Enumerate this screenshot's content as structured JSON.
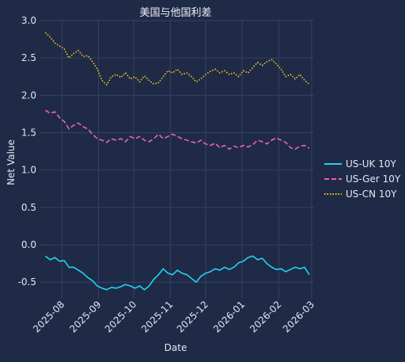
{
  "chart_data": {
    "type": "line",
    "title": "美国与他国利差",
    "xlabel": "Date",
    "ylabel": "Net Value",
    "x_range": [
      "2025-07-13",
      "2026-03-03"
    ],
    "ylim": [
      -0.72,
      3.0
    ],
    "y_ticks": [
      -0.5,
      0.0,
      0.5,
      1.0,
      1.5,
      2.0,
      2.5,
      3.0
    ],
    "y_tick_labels": [
      "-0.5",
      "0.0",
      "0.5",
      "1.0",
      "1.5",
      "2.0",
      "2.5",
      "3.0"
    ],
    "x_ticks": [
      "2025-08-01",
      "2025-09-01",
      "2025-10-01",
      "2025-11-01",
      "2025-12-01",
      "2026-01-01",
      "2026-02-01",
      "2026-03-01"
    ],
    "x_tick_labels": [
      "2025-08",
      "2025-09",
      "2025-10",
      "2025-11",
      "2025-12",
      "2026-01",
      "2026-02",
      "2026-03"
    ],
    "grid": true,
    "legend_position": "right",
    "series": [
      {
        "name": "US-UK 10Y",
        "color": "#22d3ee",
        "style": "solid",
        "points": [
          [
            "2025-07-18",
            -0.15
          ],
          [
            "2025-07-22",
            -0.2
          ],
          [
            "2025-07-26",
            -0.17
          ],
          [
            "2025-07-30",
            -0.22
          ],
          [
            "2025-08-03",
            -0.21
          ],
          [
            "2025-08-07",
            -0.3
          ],
          [
            "2025-08-11",
            -0.3
          ],
          [
            "2025-08-15",
            -0.34
          ],
          [
            "2025-08-19",
            -0.38
          ],
          [
            "2025-08-23",
            -0.44
          ],
          [
            "2025-08-27",
            -0.48
          ],
          [
            "2025-08-31",
            -0.55
          ],
          [
            "2025-09-04",
            -0.58
          ],
          [
            "2025-09-08",
            -0.6
          ],
          [
            "2025-09-12",
            -0.57
          ],
          [
            "2025-09-16",
            -0.58
          ],
          [
            "2025-09-20",
            -0.56
          ],
          [
            "2025-09-24",
            -0.53
          ],
          [
            "2025-09-28",
            -0.55
          ],
          [
            "2025-10-02",
            -0.58
          ],
          [
            "2025-10-06",
            -0.55
          ],
          [
            "2025-10-10",
            -0.6
          ],
          [
            "2025-10-14",
            -0.55
          ],
          [
            "2025-10-18",
            -0.46
          ],
          [
            "2025-10-22",
            -0.4
          ],
          [
            "2025-10-26",
            -0.32
          ],
          [
            "2025-10-30",
            -0.38
          ],
          [
            "2025-11-03",
            -0.4
          ],
          [
            "2025-11-07",
            -0.34
          ],
          [
            "2025-11-11",
            -0.38
          ],
          [
            "2025-11-15",
            -0.4
          ],
          [
            "2025-11-19",
            -0.45
          ],
          [
            "2025-11-23",
            -0.5
          ],
          [
            "2025-11-27",
            -0.42
          ],
          [
            "2025-12-01",
            -0.38
          ],
          [
            "2025-12-05",
            -0.36
          ],
          [
            "2025-12-09",
            -0.32
          ],
          [
            "2025-12-13",
            -0.34
          ],
          [
            "2025-12-17",
            -0.3
          ],
          [
            "2025-12-21",
            -0.33
          ],
          [
            "2025-12-25",
            -0.3
          ],
          [
            "2025-12-29",
            -0.24
          ],
          [
            "2026-01-02",
            -0.22
          ],
          [
            "2026-01-06",
            -0.17
          ],
          [
            "2026-01-10",
            -0.15
          ],
          [
            "2026-01-14",
            -0.2
          ],
          [
            "2026-01-18",
            -0.18
          ],
          [
            "2026-01-22",
            -0.25
          ],
          [
            "2026-01-26",
            -0.3
          ],
          [
            "2026-01-30",
            -0.33
          ],
          [
            "2026-02-03",
            -0.32
          ],
          [
            "2026-02-07",
            -0.36
          ],
          [
            "2026-02-11",
            -0.33
          ],
          [
            "2026-02-15",
            -0.3
          ],
          [
            "2026-02-19",
            -0.32
          ],
          [
            "2026-02-23",
            -0.3
          ],
          [
            "2026-02-27",
            -0.4
          ]
        ]
      },
      {
        "name": "US-Ger 10Y",
        "color": "#ec5fc0",
        "style": "dashed",
        "points": [
          [
            "2025-07-18",
            1.8
          ],
          [
            "2025-07-22",
            1.76
          ],
          [
            "2025-07-26",
            1.78
          ],
          [
            "2025-07-30",
            1.7
          ],
          [
            "2025-08-03",
            1.65
          ],
          [
            "2025-08-07",
            1.55
          ],
          [
            "2025-08-11",
            1.6
          ],
          [
            "2025-08-15",
            1.63
          ],
          [
            "2025-08-19",
            1.58
          ],
          [
            "2025-08-23",
            1.55
          ],
          [
            "2025-08-27",
            1.48
          ],
          [
            "2025-08-31",
            1.42
          ],
          [
            "2025-09-04",
            1.4
          ],
          [
            "2025-09-08",
            1.37
          ],
          [
            "2025-09-12",
            1.42
          ],
          [
            "2025-09-16",
            1.4
          ],
          [
            "2025-09-20",
            1.42
          ],
          [
            "2025-09-24",
            1.38
          ],
          [
            "2025-09-28",
            1.45
          ],
          [
            "2025-10-02",
            1.42
          ],
          [
            "2025-10-06",
            1.45
          ],
          [
            "2025-10-10",
            1.4
          ],
          [
            "2025-10-14",
            1.38
          ],
          [
            "2025-10-18",
            1.42
          ],
          [
            "2025-10-22",
            1.48
          ],
          [
            "2025-10-26",
            1.42
          ],
          [
            "2025-10-30",
            1.45
          ],
          [
            "2025-11-03",
            1.48
          ],
          [
            "2025-11-07",
            1.45
          ],
          [
            "2025-11-11",
            1.42
          ],
          [
            "2025-11-15",
            1.4
          ],
          [
            "2025-11-19",
            1.38
          ],
          [
            "2025-11-23",
            1.36
          ],
          [
            "2025-11-27",
            1.4
          ],
          [
            "2025-12-01",
            1.35
          ],
          [
            "2025-12-05",
            1.33
          ],
          [
            "2025-12-09",
            1.36
          ],
          [
            "2025-12-13",
            1.3
          ],
          [
            "2025-12-17",
            1.33
          ],
          [
            "2025-12-21",
            1.28
          ],
          [
            "2025-12-25",
            1.32
          ],
          [
            "2025-12-29",
            1.3
          ],
          [
            "2026-01-02",
            1.33
          ],
          [
            "2026-01-06",
            1.31
          ],
          [
            "2026-01-10",
            1.34
          ],
          [
            "2026-01-14",
            1.4
          ],
          [
            "2026-01-18",
            1.38
          ],
          [
            "2026-01-22",
            1.35
          ],
          [
            "2026-01-26",
            1.4
          ],
          [
            "2026-01-30",
            1.43
          ],
          [
            "2026-02-03",
            1.4
          ],
          [
            "2026-02-07",
            1.37
          ],
          [
            "2026-02-11",
            1.3
          ],
          [
            "2026-02-15",
            1.28
          ],
          [
            "2026-02-19",
            1.32
          ],
          [
            "2026-02-23",
            1.33
          ],
          [
            "2026-02-27",
            1.29
          ]
        ]
      },
      {
        "name": "US-CN 10Y",
        "color": "#facc15",
        "style": "dotted",
        "points": [
          [
            "2025-07-18",
            2.84
          ],
          [
            "2025-07-22",
            2.78
          ],
          [
            "2025-07-26",
            2.7
          ],
          [
            "2025-07-30",
            2.66
          ],
          [
            "2025-08-03",
            2.62
          ],
          [
            "2025-08-07",
            2.5
          ],
          [
            "2025-08-11",
            2.56
          ],
          [
            "2025-08-15",
            2.6
          ],
          [
            "2025-08-19",
            2.52
          ],
          [
            "2025-08-23",
            2.53
          ],
          [
            "2025-08-27",
            2.45
          ],
          [
            "2025-08-31",
            2.35
          ],
          [
            "2025-09-04",
            2.2
          ],
          [
            "2025-09-08",
            2.14
          ],
          [
            "2025-09-12",
            2.25
          ],
          [
            "2025-09-16",
            2.28
          ],
          [
            "2025-09-20",
            2.24
          ],
          [
            "2025-09-24",
            2.3
          ],
          [
            "2025-09-28",
            2.22
          ],
          [
            "2025-10-02",
            2.25
          ],
          [
            "2025-10-06",
            2.18
          ],
          [
            "2025-10-10",
            2.26
          ],
          [
            "2025-10-14",
            2.2
          ],
          [
            "2025-10-18",
            2.15
          ],
          [
            "2025-10-22",
            2.17
          ],
          [
            "2025-10-26",
            2.25
          ],
          [
            "2025-10-30",
            2.33
          ],
          [
            "2025-11-03",
            2.3
          ],
          [
            "2025-11-07",
            2.35
          ],
          [
            "2025-11-11",
            2.28
          ],
          [
            "2025-11-15",
            2.3
          ],
          [
            "2025-11-19",
            2.25
          ],
          [
            "2025-11-23",
            2.18
          ],
          [
            "2025-11-27",
            2.22
          ],
          [
            "2025-12-01",
            2.28
          ],
          [
            "2025-12-05",
            2.32
          ],
          [
            "2025-12-09",
            2.35
          ],
          [
            "2025-12-13",
            2.3
          ],
          [
            "2025-12-17",
            2.33
          ],
          [
            "2025-12-21",
            2.28
          ],
          [
            "2025-12-25",
            2.3
          ],
          [
            "2025-12-29",
            2.25
          ],
          [
            "2026-01-02",
            2.33
          ],
          [
            "2026-01-06",
            2.3
          ],
          [
            "2026-01-10",
            2.37
          ],
          [
            "2026-01-14",
            2.44
          ],
          [
            "2026-01-18",
            2.4
          ],
          [
            "2026-01-22",
            2.45
          ],
          [
            "2026-01-26",
            2.48
          ],
          [
            "2026-01-30",
            2.42
          ],
          [
            "2026-02-03",
            2.35
          ],
          [
            "2026-02-07",
            2.25
          ],
          [
            "2026-02-11",
            2.28
          ],
          [
            "2026-02-15",
            2.22
          ],
          [
            "2026-02-19",
            2.28
          ],
          [
            "2026-02-23",
            2.2
          ],
          [
            "2026-02-27",
            2.15
          ]
        ]
      }
    ]
  }
}
